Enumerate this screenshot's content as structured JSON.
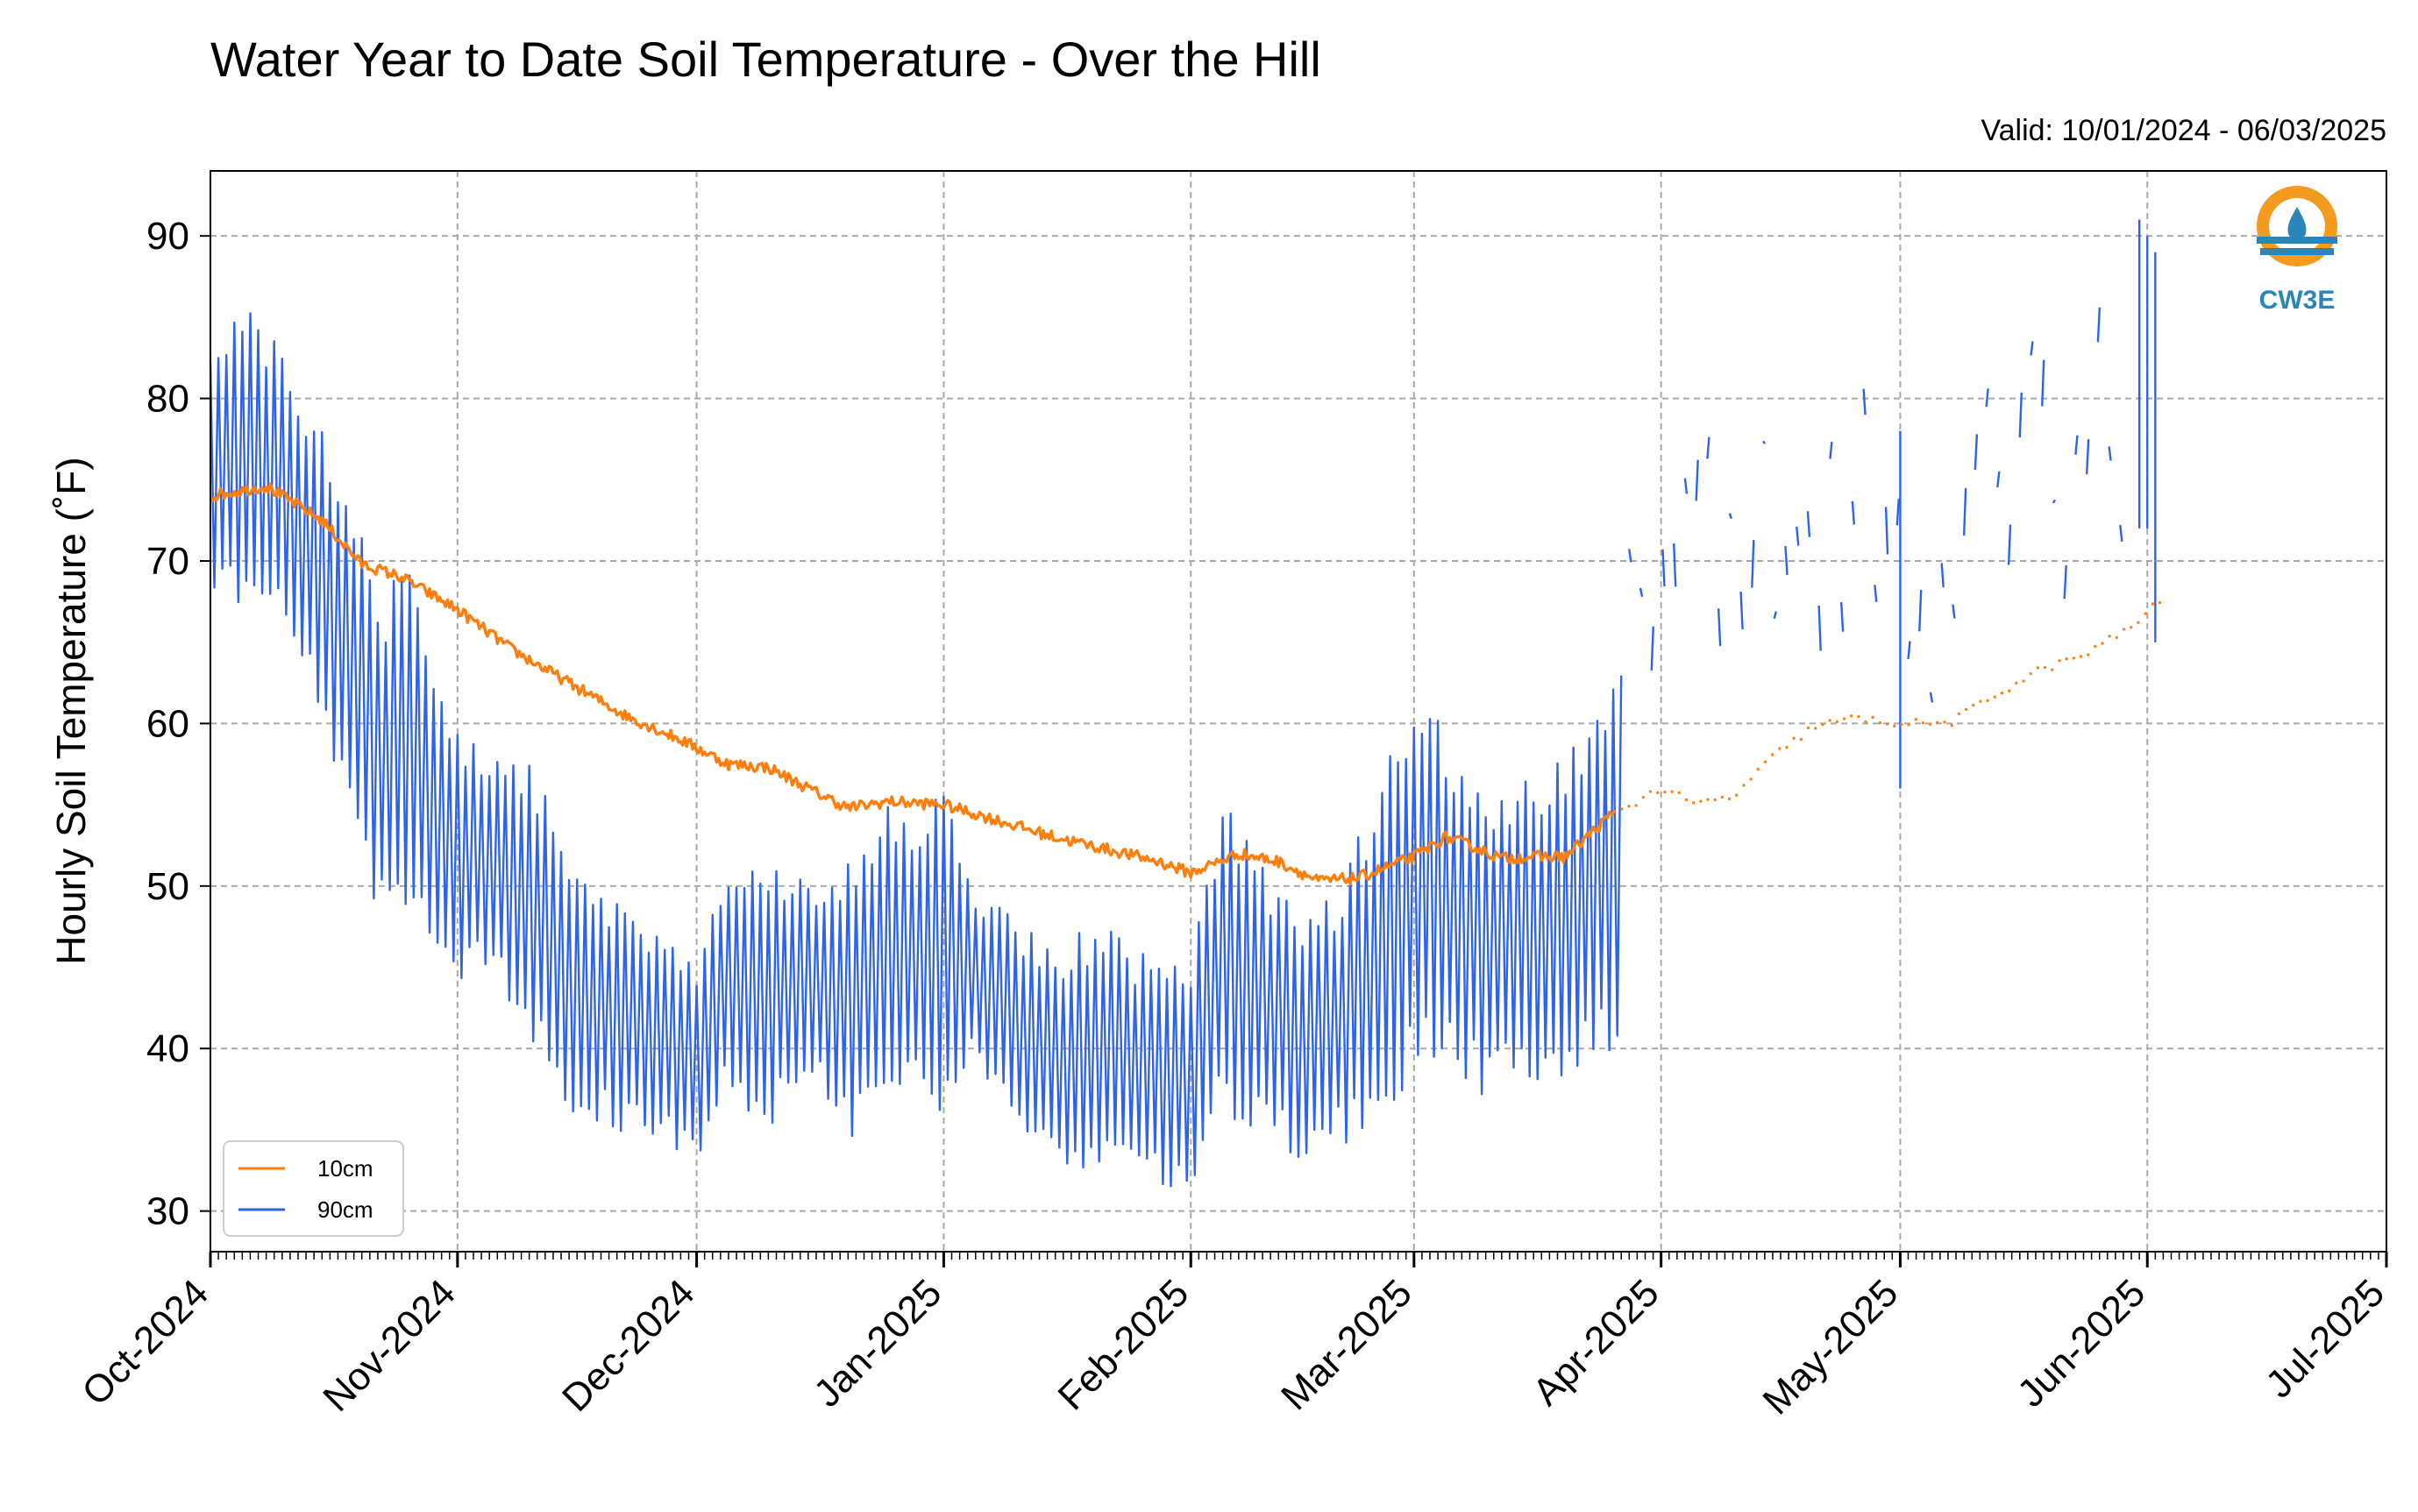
{
  "chart_data": {
    "type": "line",
    "title": "Water Year to Date Soil Temperature - Over the Hill",
    "valid_label": "Valid: 10/01/2024 - 06/03/2025",
    "ylabel": "Hourly Soil Temperature (˚F)",
    "xlabel": "",
    "ylim": [
      27.5,
      94
    ],
    "xlim": [
      "2024-10-01",
      "2025-07-01"
    ],
    "yticks": [
      30,
      40,
      50,
      60,
      70,
      80,
      90
    ],
    "xticks": [
      {
        "date": "2024-10-01",
        "label": "Oct-2024"
      },
      {
        "date": "2024-11-01",
        "label": "Nov-2024"
      },
      {
        "date": "2024-12-01",
        "label": "Dec-2024"
      },
      {
        "date": "2025-01-01",
        "label": "Jan-2025"
      },
      {
        "date": "2025-02-01",
        "label": "Feb-2025"
      },
      {
        "date": "2025-03-01",
        "label": "Mar-2025"
      },
      {
        "date": "2025-04-01",
        "label": "Apr-2025"
      },
      {
        "date": "2025-05-01",
        "label": "May-2025"
      },
      {
        "date": "2025-06-01",
        "label": "Jun-2025"
      },
      {
        "date": "2025-07-01",
        "label": "Jul-2025"
      }
    ],
    "grid": true,
    "legend_position": "bottom-left",
    "logo_text": "CW3E",
    "series": [
      {
        "name": "10cm",
        "color": "#ff7f0e",
        "description": "daily mean temperature, small diurnal variation",
        "x": [
          "2024-10-01",
          "2024-10-08",
          "2024-10-15",
          "2024-10-20",
          "2024-10-25",
          "2024-11-01",
          "2024-11-08",
          "2024-11-15",
          "2024-11-22",
          "2024-11-29",
          "2024-12-05",
          "2024-12-10",
          "2024-12-15",
          "2024-12-20",
          "2024-12-25",
          "2025-01-01",
          "2025-01-08",
          "2025-01-15",
          "2025-01-22",
          "2025-01-28",
          "2025-02-01",
          "2025-02-07",
          "2025-02-12",
          "2025-02-17",
          "2025-02-22",
          "2025-03-01",
          "2025-03-05",
          "2025-03-08",
          "2025-03-12",
          "2025-03-15",
          "2025-03-20",
          "2025-03-26",
          "2025-04-01",
          "2025-04-05",
          "2025-04-10",
          "2025-04-15",
          "2025-04-20",
          "2025-04-25",
          "2025-05-01",
          "2025-05-07",
          "2025-05-12",
          "2025-05-18",
          "2025-05-24",
          "2025-05-30",
          "2025-06-03"
        ],
        "y": [
          74.0,
          74.6,
          72.5,
          69.8,
          69.0,
          67.0,
          64.5,
          62.5,
          60.5,
          59.0,
          57.5,
          57.3,
          56.0,
          54.8,
          55.2,
          55.0,
          54.0,
          53.0,
          52.2,
          51.5,
          50.8,
          52.0,
          51.5,
          50.3,
          50.5,
          51.8,
          53.0,
          52.5,
          51.7,
          51.8,
          51.8,
          54.5,
          56.0,
          55.0,
          55.5,
          58.0,
          59.8,
          60.3,
          60.0,
          60.0,
          61.5,
          63.2,
          64.2,
          66.0,
          67.8
        ],
        "gaps": [
          {
            "start": "2025-03-26",
            "end": "2025-06-03",
            "style": "sparse dotted"
          }
        ]
      },
      {
        "name": "90cm",
        "color": "#2f64e8",
        "description": "strong daily oscillation; values below are the daily [min, max] envelope",
        "x": [
          "2024-10-01",
          "2024-10-05",
          "2024-10-10",
          "2024-10-15",
          "2024-10-18",
          "2024-10-22",
          "2024-10-26",
          "2024-11-01",
          "2024-11-05",
          "2024-11-10",
          "2024-11-15",
          "2024-11-20",
          "2024-11-25",
          "2024-12-01",
          "2024-12-05",
          "2024-12-10",
          "2024-12-15",
          "2024-12-20",
          "2024-12-25",
          "2025-01-01",
          "2025-01-05",
          "2025-01-10",
          "2025-01-15",
          "2025-01-20",
          "2025-01-25",
          "2025-02-01",
          "2025-02-05",
          "2025-02-10",
          "2025-02-15",
          "2025-02-20",
          "2025-02-25",
          "2025-03-01",
          "2025-03-05",
          "2025-03-10",
          "2025-03-15",
          "2025-03-20",
          "2025-03-27"
        ],
        "y_min": [
          66,
          67,
          65,
          60,
          53,
          48,
          49,
          44,
          45,
          40,
          36,
          35,
          34,
          33,
          37,
          35,
          38,
          34,
          37,
          36,
          39,
          35,
          33,
          31,
          33,
          30,
          36,
          34,
          33,
          34,
          35,
          38,
          38,
          37,
          38,
          37,
          40
        ],
        "y_max": [
          85,
          87,
          84,
          78,
          77,
          68,
          70,
          60,
          58,
          58,
          52,
          50,
          48,
          46,
          52,
          52,
          50,
          52,
          55,
          56,
          50,
          48,
          46,
          48,
          46,
          46,
          56,
          52,
          48,
          50,
          58,
          62,
          60,
          56,
          57,
          58,
          64
        ],
        "scattered_after": "2025-03-27"
      }
    ]
  }
}
